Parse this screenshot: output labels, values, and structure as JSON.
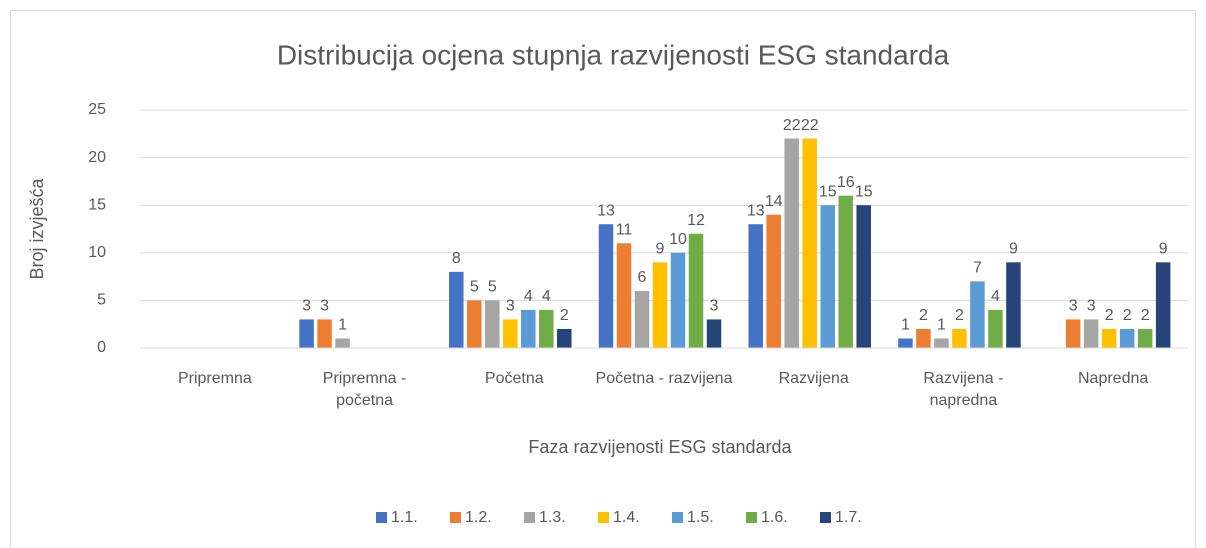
{
  "chart_data": {
    "type": "bar",
    "title": "Distribucija ocjena stupnja razvijenosti ESG standarda",
    "x_label": "Faza razvijenosti ESG standarda",
    "y_label": "Broj izvješća",
    "categories": [
      "Pripremna",
      "Pripremna - početna",
      "Početna",
      "Početna - razvijena",
      "Razvijena",
      "Razvijena - napredna",
      "Napredna"
    ],
    "series": [
      {
        "name": "1.1.",
        "color": "#4472c4",
        "values": [
          null,
          3,
          8,
          13,
          13,
          1,
          null
        ]
      },
      {
        "name": "1.2.",
        "color": "#ed7d31",
        "values": [
          null,
          3,
          5,
          11,
          14,
          2,
          3
        ]
      },
      {
        "name": "1.3.",
        "color": "#a5a5a5",
        "values": [
          null,
          1,
          5,
          6,
          22,
          1,
          3
        ]
      },
      {
        "name": "1.4.",
        "color": "#ffc000",
        "values": [
          null,
          null,
          3,
          9,
          22,
          2,
          2
        ]
      },
      {
        "name": "1.5.",
        "color": "#5b9bd5",
        "values": [
          null,
          null,
          4,
          10,
          15,
          7,
          2
        ]
      },
      {
        "name": "1.6.",
        "color": "#70ad47",
        "values": [
          null,
          null,
          4,
          12,
          16,
          4,
          2
        ]
      },
      {
        "name": "1.7.",
        "color": "#264478",
        "values": [
          null,
          null,
          2,
          3,
          15,
          9,
          9
        ]
      }
    ],
    "ylim": [
      0,
      25
    ],
    "yticks": [
      0,
      5,
      10,
      15,
      20,
      25
    ],
    "grid": true,
    "legend": "bottom"
  }
}
